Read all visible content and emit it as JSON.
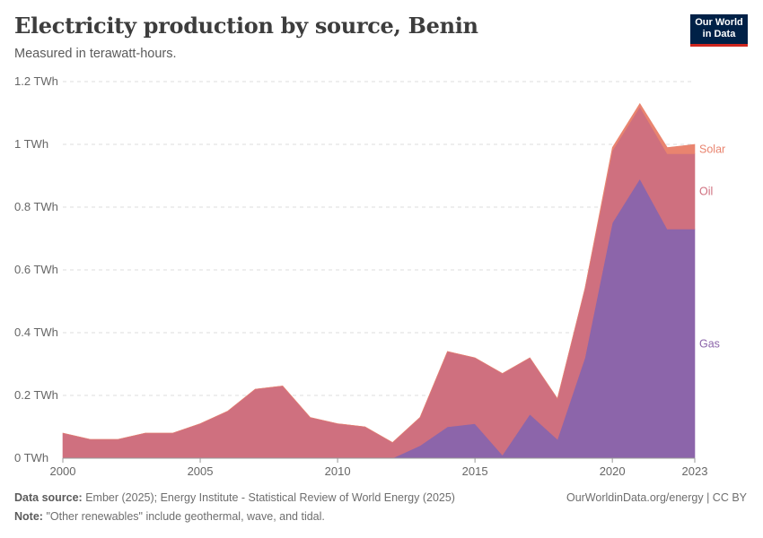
{
  "header": {
    "title": "Electricity production by source, Benin",
    "subtitle": "Measured in terawatt-hours."
  },
  "logo": {
    "line1": "Our World",
    "line2": "in Data"
  },
  "chart_data": {
    "type": "area",
    "stacked": true,
    "title": "Electricity production by source, Benin",
    "ylabel": "Measured in terawatt-hours.",
    "ylim": [
      0,
      1.2
    ],
    "xlim": [
      2000,
      2023
    ],
    "yticks": [
      0,
      0.2,
      0.4,
      0.6,
      0.8,
      1.0,
      1.2
    ],
    "ytick_labels": [
      "0 TWh",
      "0.2 TWh",
      "0.4 TWh",
      "0.6 TWh",
      "0.8 TWh",
      "1 TWh",
      "1.2 TWh"
    ],
    "xticks": [
      2000,
      2005,
      2010,
      2015,
      2020,
      2023
    ],
    "xtick_labels": [
      "2000",
      "2005",
      "2010",
      "2015",
      "2020",
      "2023"
    ],
    "x": [
      2000,
      2001,
      2002,
      2003,
      2004,
      2005,
      2006,
      2007,
      2008,
      2009,
      2010,
      2011,
      2012,
      2013,
      2014,
      2015,
      2016,
      2017,
      2018,
      2019,
      2020,
      2021,
      2022,
      2023
    ],
    "series": [
      {
        "name": "Gas",
        "color": "#8c65aa",
        "values": [
          0,
          0,
          0,
          0,
          0,
          0,
          0,
          0,
          0,
          0,
          0,
          0,
          0,
          0.04,
          0.1,
          0.11,
          0.01,
          0.14,
          0.06,
          0.32,
          0.75,
          0.89,
          0.73,
          0.73
        ]
      },
      {
        "name": "Oil",
        "color": "#cf707f",
        "values": [
          0.08,
          0.06,
          0.06,
          0.08,
          0.08,
          0.11,
          0.15,
          0.22,
          0.23,
          0.13,
          0.11,
          0.1,
          0.05,
          0.09,
          0.24,
          0.21,
          0.26,
          0.18,
          0.13,
          0.22,
          0.23,
          0.23,
          0.24,
          0.24
        ]
      },
      {
        "name": "Solar",
        "color": "#e9846f",
        "values": [
          0,
          0,
          0,
          0,
          0,
          0,
          0,
          0,
          0,
          0,
          0,
          0,
          0,
          0,
          0,
          0,
          0,
          0,
          0,
          0,
          0.01,
          0.01,
          0.02,
          0.03
        ]
      }
    ]
  },
  "footer": {
    "source_label": "Data source:",
    "source_text": "Ember (2025); Energy Institute - Statistical Review of World Energy (2025)",
    "note_label": "Note:",
    "note_text": "\"Other renewables\" include geothermal, wave, and tidal.",
    "url": "OurWorldinData.org/energy",
    "separator": " | ",
    "license": "CC BY"
  }
}
